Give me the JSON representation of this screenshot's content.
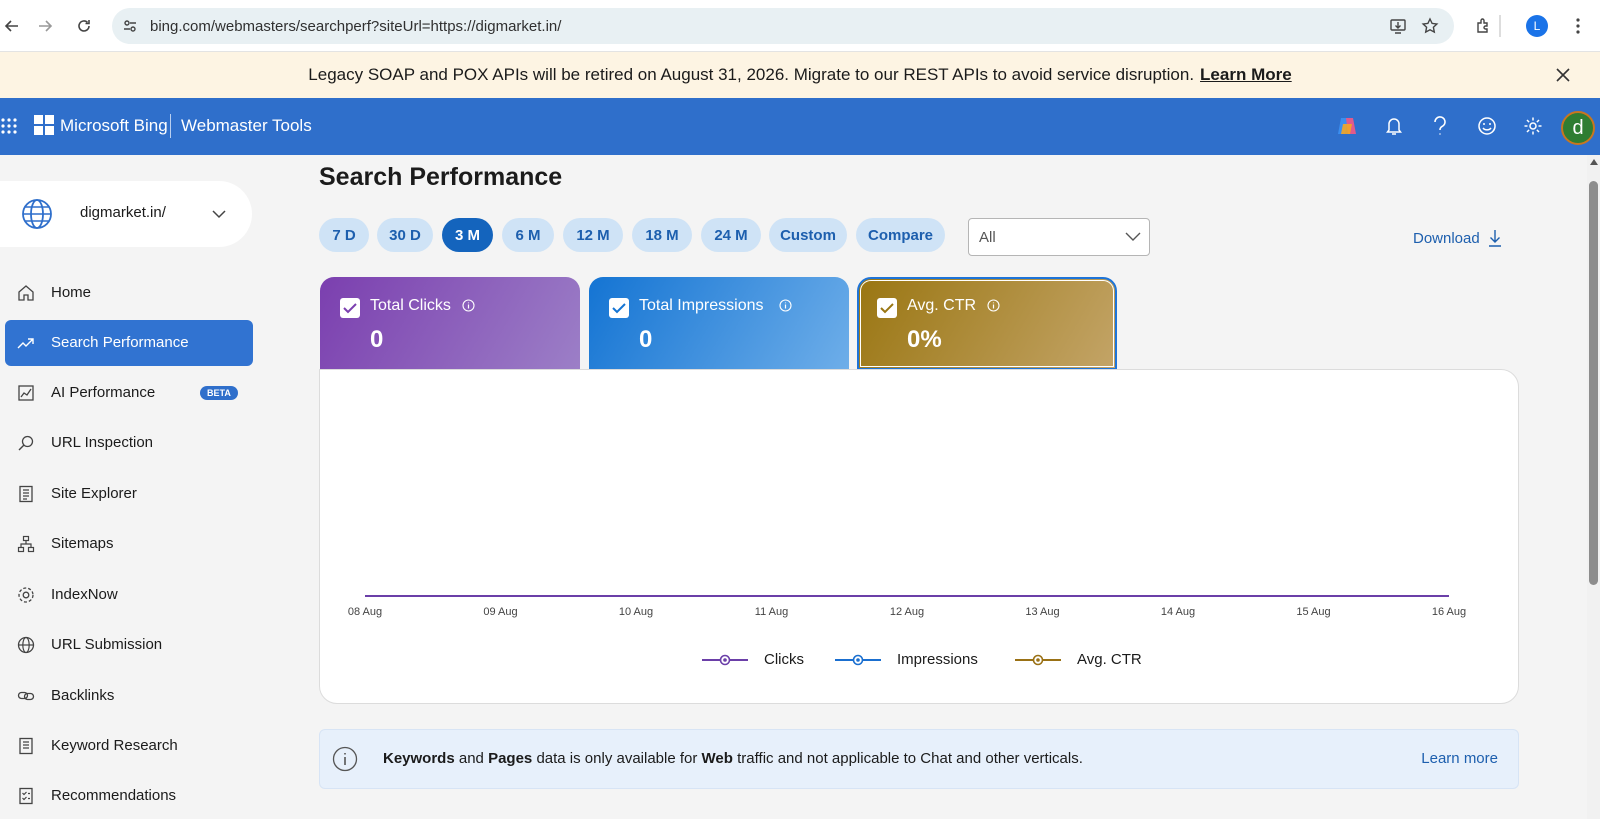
{
  "browser": {
    "url": "bing.com/webmasters/searchperf?siteUrl=https://digmarket.in/",
    "profile_initial": "L"
  },
  "notice": {
    "message": "Legacy SOAP and POX APIs will be retired on August 31, 2026. Migrate to our REST APIs to avoid service disruption.",
    "link": "Learn More"
  },
  "header": {
    "brand": "Microsoft Bing",
    "product": "Webmaster Tools",
    "avatar_initial": "d"
  },
  "sidebar": {
    "site": "digmarket.in/",
    "items": [
      {
        "label": "Home",
        "icon": "home-icon"
      },
      {
        "label": "Search Performance",
        "icon": "trend-icon",
        "active": true
      },
      {
        "label": "AI Performance",
        "icon": "chart-icon",
        "badge": "BETA"
      },
      {
        "label": "URL Inspection",
        "icon": "search-icon"
      },
      {
        "label": "Site Explorer",
        "icon": "document-icon"
      },
      {
        "label": "Sitemaps",
        "icon": "sitemap-icon"
      },
      {
        "label": "IndexNow",
        "icon": "gear-icon"
      },
      {
        "label": "URL Submission",
        "icon": "globe-icon"
      },
      {
        "label": "Backlinks",
        "icon": "link-icon"
      },
      {
        "label": "Keyword Research",
        "icon": "document-icon"
      },
      {
        "label": "Recommendations",
        "icon": "checklist-icon"
      }
    ]
  },
  "main": {
    "title": "Search Performance",
    "ranges": [
      "7 D",
      "30 D",
      "3 M",
      "6 M",
      "12 M",
      "18 M",
      "24 M",
      "Custom",
      "Compare"
    ],
    "active_range": "3 M",
    "filter_value": "All",
    "download_label": "Download",
    "metrics": [
      {
        "label": "Total Clicks",
        "value": "0"
      },
      {
        "label": "Total Impressions",
        "value": "0"
      },
      {
        "label": "Avg. CTR",
        "value": "0%"
      }
    ],
    "info_bar": {
      "kw": "Keywords",
      "and": " and ",
      "pages": "Pages",
      "mid": " data is only available for ",
      "web": "Web",
      "end": " traffic and not applicable to Chat and other verticals.",
      "link": "Learn more"
    }
  },
  "chart_data": {
    "type": "line",
    "x": [
      "08 Aug",
      "09 Aug",
      "10 Aug",
      "11 Aug",
      "12 Aug",
      "13 Aug",
      "14 Aug",
      "15 Aug",
      "16 Aug"
    ],
    "series": [
      {
        "name": "Clicks",
        "color": "#6b3fa8",
        "values": [
          0,
          0,
          0,
          0,
          0,
          0,
          0,
          0,
          0
        ]
      },
      {
        "name": "Impressions",
        "color": "#1a6fd0",
        "values": [
          0,
          0,
          0,
          0,
          0,
          0,
          0,
          0,
          0
        ]
      },
      {
        "name": "Avg. CTR",
        "color": "#9a7115",
        "values": [
          0,
          0,
          0,
          0,
          0,
          0,
          0,
          0,
          0
        ]
      }
    ]
  }
}
